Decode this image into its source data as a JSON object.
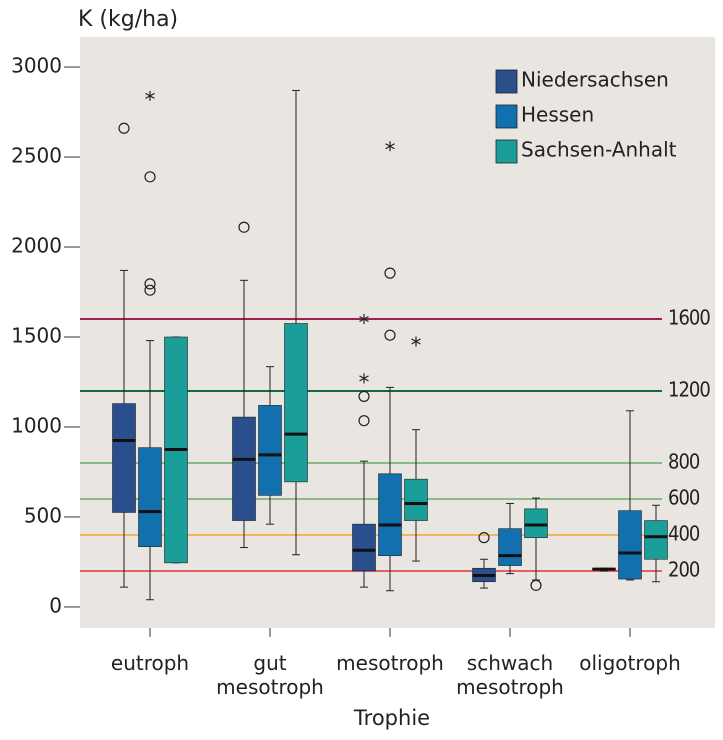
{
  "chart_data": {
    "type": "boxplot",
    "y_label": "K (kg/ha)",
    "x_label": "Trophie",
    "categories": [
      "eutroph",
      "gut\nmesotroph",
      "mesotroph",
      "schwach\nmesotroph",
      "oligotroph"
    ],
    "ylim": [
      -117,
      3167
    ],
    "yticks": [
      0,
      500,
      1000,
      1500,
      2000,
      2500,
      3000
    ],
    "legend": "top-right",
    "series": [
      {
        "name": "Niedersachsen",
        "color": "#2b4f8c",
        "boxes": [
          {
            "min": 110,
            "q1": 525,
            "median": 925,
            "q3": 1130,
            "max": 1870,
            "outliers": [
              2660
            ],
            "extremes": []
          },
          {
            "min": 330,
            "q1": 480,
            "median": 820,
            "q3": 1055,
            "max": 1815,
            "outliers": [
              2110
            ],
            "extremes": []
          },
          {
            "min": 110,
            "q1": 200,
            "median": 315,
            "q3": 460,
            "max": 810,
            "outliers": [
              1035,
              1170
            ],
            "extremes": [
              1270,
              1600
            ]
          },
          {
            "min": 105,
            "q1": 140,
            "median": 175,
            "q3": 215,
            "max": 265,
            "outliers": [
              385
            ],
            "extremes": []
          },
          {
            "min": 200,
            "q1": 205,
            "median": 210,
            "q3": 215,
            "max": 215,
            "outliers": [],
            "extremes": []
          }
        ]
      },
      {
        "name": "Hessen",
        "color": "#1170ad",
        "boxes": [
          {
            "min": 40,
            "q1": 335,
            "median": 530,
            "q3": 885,
            "max": 1480,
            "outliers": [
              2390,
              1795,
              1760
            ],
            "extremes": [
              2840
            ]
          },
          {
            "min": 460,
            "q1": 620,
            "median": 845,
            "q3": 1120,
            "max": 1335,
            "outliers": [],
            "extremes": []
          },
          {
            "min": 90,
            "q1": 285,
            "median": 455,
            "q3": 740,
            "max": 1220,
            "outliers": [
              1510,
              1855
            ],
            "extremes": [
              2560
            ]
          },
          {
            "min": 185,
            "q1": 230,
            "median": 285,
            "q3": 435,
            "max": 575,
            "outliers": [],
            "extremes": []
          },
          {
            "min": 150,
            "q1": 155,
            "median": 300,
            "q3": 535,
            "max": 1090,
            "outliers": [],
            "extremes": []
          }
        ]
      },
      {
        "name": "Sachsen-Anhalt",
        "color": "#1b9e9a",
        "boxes": [
          {
            "min": 245,
            "q1": 245,
            "median": 875,
            "q3": 1500,
            "max": 1500,
            "outliers": [],
            "extremes": []
          },
          {
            "min": 290,
            "q1": 695,
            "median": 960,
            "q3": 1575,
            "max": 2870,
            "outliers": [],
            "extremes": []
          },
          {
            "min": 255,
            "q1": 480,
            "median": 575,
            "q3": 710,
            "max": 985,
            "outliers": [],
            "extremes": [
              1475
            ]
          },
          {
            "min": 150,
            "q1": 385,
            "median": 455,
            "q3": 545,
            "max": 605,
            "outliers": [
              120
            ],
            "extremes": []
          },
          {
            "min": 140,
            "q1": 265,
            "median": 390,
            "q3": 480,
            "max": 565,
            "outliers": [],
            "extremes": []
          }
        ]
      }
    ],
    "reference_lines": [
      {
        "value": 1600,
        "color": "#9e1f52"
      },
      {
        "value": 1200,
        "color": "#17683a"
      },
      {
        "value": 800,
        "color": "#6bab68"
      },
      {
        "value": 600,
        "color": "#6bab68"
      },
      {
        "value": 400,
        "color": "#f3a53a"
      },
      {
        "value": 200,
        "color": "#e0363a"
      }
    ]
  }
}
